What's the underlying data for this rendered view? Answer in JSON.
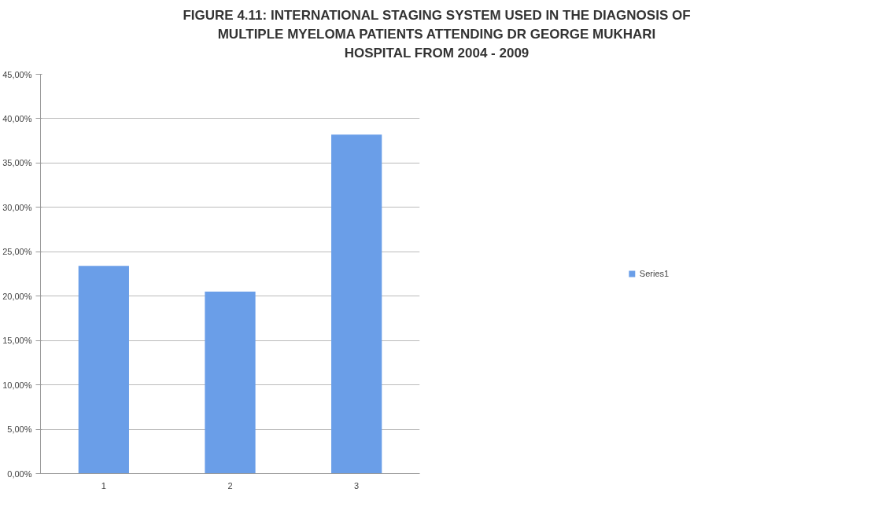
{
  "chart_data": {
    "type": "bar",
    "title": "FIGURE 4.11: INTERNATIONAL STAGING SYSTEM USED IN THE DIAGNOSIS OF\nMULTIPLE MYELOMA PATIENTS ATTENDING DR GEORGE MUKHARI\nHOSPITAL FROM 2004 - 2009",
    "categories": [
      "1",
      "2",
      "3"
    ],
    "series": [
      {
        "name": "Series1",
        "color": "#6a9ee8",
        "values": [
          23.4,
          20.5,
          38.2
        ]
      }
    ],
    "ylim": [
      0,
      45
    ],
    "yticks": [
      {
        "value": 0,
        "label": "0,00%"
      },
      {
        "value": 5,
        "label": "5,00%"
      },
      {
        "value": 10,
        "label": "10,00%"
      },
      {
        "value": 15,
        "label": "15,00%"
      },
      {
        "value": 20,
        "label": "20,00%"
      },
      {
        "value": 25,
        "label": "25,00%"
      },
      {
        "value": 30,
        "label": "30,00%"
      },
      {
        "value": 35,
        "label": "35,00%"
      },
      {
        "value": 40,
        "label": "40,00%"
      },
      {
        "value": 45,
        "label": "45,00%"
      }
    ],
    "grid": "y",
    "legend": "right"
  }
}
